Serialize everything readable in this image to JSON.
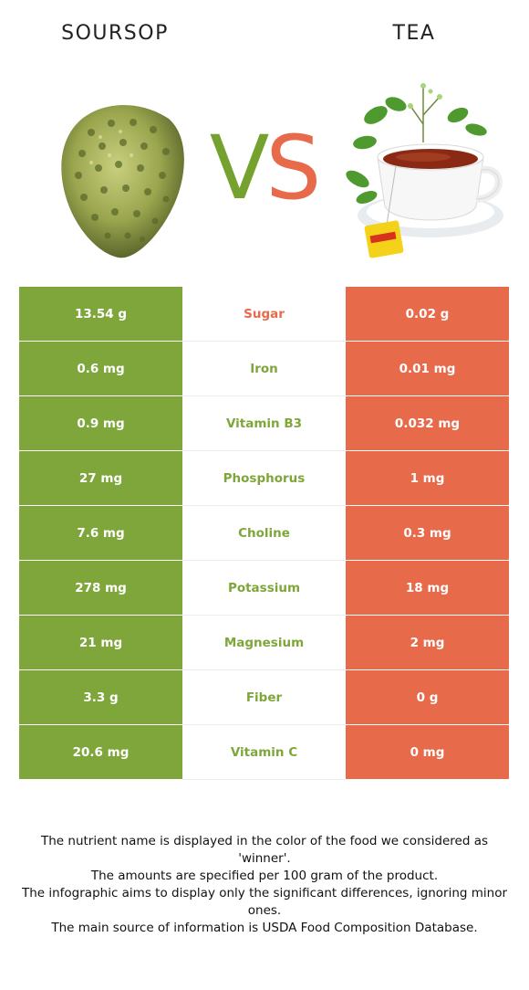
{
  "header": {
    "left_food": "SOURSOP",
    "right_food": "TEA",
    "vs_v": "V",
    "vs_s": "S"
  },
  "colors": {
    "left_winner": "#7ea63a",
    "right_winner": "#e76a4b"
  },
  "images": {
    "left": "soursop-fruit",
    "right": "tea-cup-with-herbs"
  },
  "rows": [
    {
      "left": "13.54 g",
      "nutrient": "Sugar",
      "right": "0.02 g",
      "winner": "right"
    },
    {
      "left": "0.6 mg",
      "nutrient": "Iron",
      "right": "0.01 mg",
      "winner": "left"
    },
    {
      "left": "0.9 mg",
      "nutrient": "Vitamin B3",
      "right": "0.032 mg",
      "winner": "left"
    },
    {
      "left": "27 mg",
      "nutrient": "Phosphorus",
      "right": "1 mg",
      "winner": "left"
    },
    {
      "left": "7.6 mg",
      "nutrient": "Choline",
      "right": "0.3 mg",
      "winner": "left"
    },
    {
      "left": "278 mg",
      "nutrient": "Potassium",
      "right": "18 mg",
      "winner": "left"
    },
    {
      "left": "21 mg",
      "nutrient": "Magnesium",
      "right": "2 mg",
      "winner": "left"
    },
    {
      "left": "3.3 g",
      "nutrient": "Fiber",
      "right": "0 g",
      "winner": "left"
    },
    {
      "left": "20.6 mg",
      "nutrient": "Vitamin C",
      "right": "0 mg",
      "winner": "left"
    }
  ],
  "footer": {
    "line1": "The nutrient name is displayed in the color of the food we considered as 'winner'.",
    "line2": "The amounts are specified per 100 gram of the product.",
    "line3": "The infographic aims to display only the significant differences, ignoring minor ones.",
    "line4": "The main source of information is USDA Food Composition Database."
  }
}
